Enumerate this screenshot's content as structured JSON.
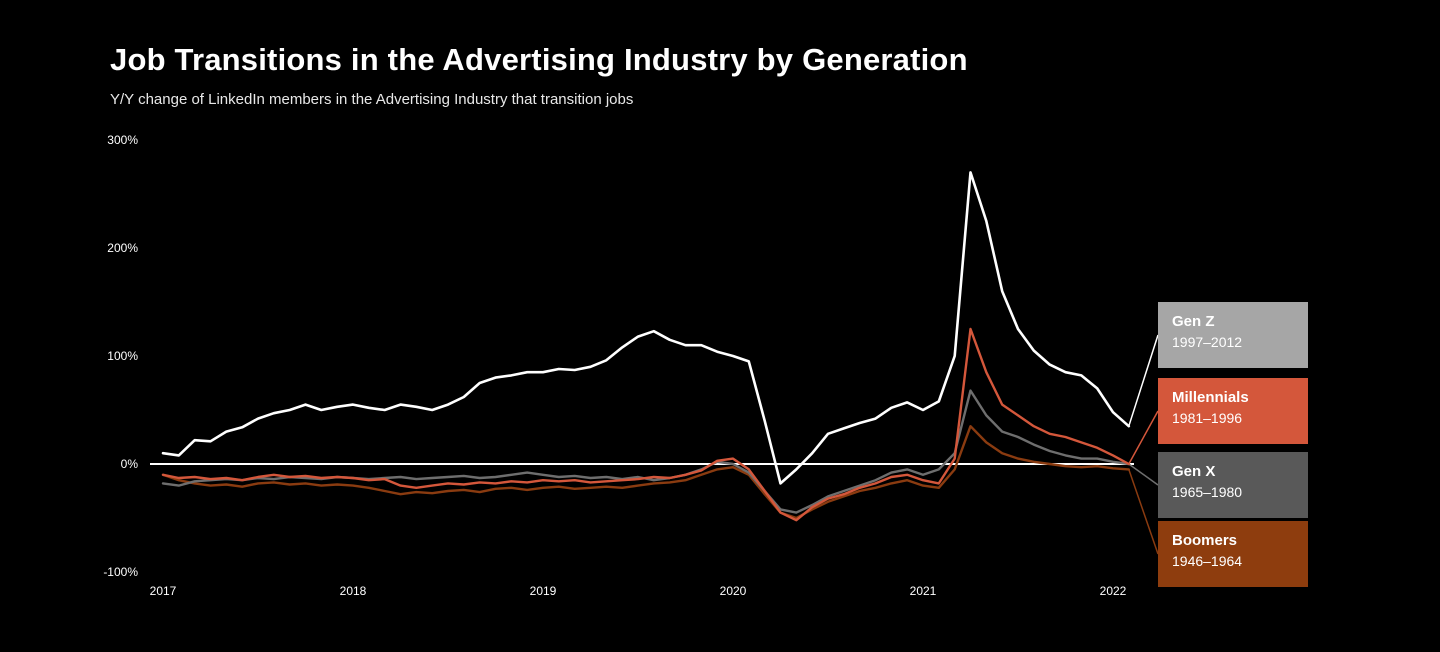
{
  "page": {
    "title": "Job Transitions in the Advertising Industry by Generation",
    "subtitle": "Y/Y change of LinkedIn members in the Advertising Industry that transition jobs",
    "background_color": "#000000",
    "text_color": "#ffffff"
  },
  "chart_data": {
    "type": "line",
    "title": "Job Transitions in the Advertising Industry by Generation",
    "subtitle": "Y/Y change of LinkedIn members in the Advertising Industry that transition jobs",
    "x_unit": "month",
    "x_start": "2017-01",
    "x_end": "2022-02",
    "ylim": [
      -100,
      300
    ],
    "grid": "zero-line-only",
    "zero_line_color": "#ffffff",
    "legend_position": "right",
    "x_ticks": [
      "2017",
      "2018",
      "2019",
      "2020",
      "2021",
      "2022"
    ],
    "y_ticks": [
      {
        "label": "300%",
        "value": 300
      },
      {
        "label": "200%",
        "value": 200
      },
      {
        "label": "100%",
        "value": 100
      },
      {
        "label": "0%",
        "value": 0
      },
      {
        "label": "-100%",
        "value": -100
      }
    ],
    "series": [
      {
        "name": "Gen Z",
        "color": "#ffffff",
        "width": 2.6,
        "values": [
          10,
          8,
          22,
          21,
          30,
          34,
          42,
          47,
          50,
          55,
          50,
          53,
          55,
          52,
          50,
          55,
          53,
          50,
          55,
          62,
          75,
          80,
          82,
          85,
          85,
          88,
          87,
          90,
          96,
          108,
          118,
          123,
          115,
          110,
          110,
          104,
          100,
          95,
          40,
          -18,
          -5,
          10,
          28,
          33,
          38,
          42,
          52,
          57,
          50,
          58,
          100,
          270,
          225,
          160,
          125,
          105,
          92,
          85,
          82,
          70,
          48,
          35
        ]
      },
      {
        "name": "Millennials",
        "color": "#d4573b",
        "width": 2.4,
        "values": [
          -10,
          -13,
          -12,
          -14,
          -13,
          -15,
          -12,
          -10,
          -12,
          -11,
          -13,
          -12,
          -13,
          -15,
          -14,
          -20,
          -22,
          -20,
          -18,
          -19,
          -17,
          -18,
          -16,
          -17,
          -15,
          -16,
          -15,
          -17,
          -16,
          -15,
          -14,
          -12,
          -13,
          -10,
          -6,
          3,
          5,
          -5,
          -25,
          -45,
          -52,
          -40,
          -32,
          -28,
          -22,
          -18,
          -12,
          -10,
          -15,
          -18,
          5,
          125,
          85,
          55,
          45,
          35,
          28,
          25,
          20,
          15,
          8,
          0
        ]
      },
      {
        "name": "Gen X",
        "color": "#6e6e6e",
        "width": 2.4,
        "values": [
          -18,
          -20,
          -16,
          -15,
          -14,
          -15,
          -13,
          -14,
          -12,
          -13,
          -14,
          -12,
          -13,
          -14,
          -13,
          -12,
          -14,
          -13,
          -12,
          -11,
          -13,
          -12,
          -10,
          -8,
          -10,
          -12,
          -11,
          -13,
          -12,
          -14,
          -12,
          -15,
          -13,
          -10,
          -5,
          2,
          0,
          -8,
          -25,
          -42,
          -45,
          -38,
          -30,
          -25,
          -20,
          -15,
          -8,
          -5,
          -10,
          -5,
          10,
          68,
          45,
          30,
          25,
          18,
          12,
          8,
          5,
          5,
          2,
          0
        ]
      },
      {
        "name": "Boomers",
        "color": "#8a3b10",
        "width": 2.4,
        "values": [
          -10,
          -15,
          -18,
          -20,
          -19,
          -21,
          -18,
          -17,
          -19,
          -18,
          -20,
          -19,
          -20,
          -22,
          -25,
          -28,
          -26,
          -27,
          -25,
          -24,
          -26,
          -23,
          -22,
          -24,
          -22,
          -21,
          -23,
          -22,
          -21,
          -22,
          -20,
          -18,
          -17,
          -15,
          -10,
          -5,
          -3,
          -10,
          -28,
          -45,
          -50,
          -42,
          -35,
          -30,
          -25,
          -22,
          -18,
          -15,
          -20,
          -22,
          -5,
          35,
          20,
          10,
          5,
          2,
          0,
          -2,
          -3,
          -2,
          -4,
          -5
        ]
      }
    ]
  },
  "legend": {
    "items": [
      {
        "label": "Gen Z",
        "years": "1997–2012",
        "color": "#a6a6a6",
        "slug": "gen-z"
      },
      {
        "label": "Millennials",
        "years": "1981–1996",
        "color": "#d4573b",
        "slug": "millennials"
      },
      {
        "label": "Gen X",
        "years": "1965–1980",
        "color": "#595959",
        "slug": "gen-x"
      },
      {
        "label": "Boomers",
        "years": "1946–1964",
        "color": "#8e3d0e",
        "slug": "boomers"
      }
    ]
  }
}
